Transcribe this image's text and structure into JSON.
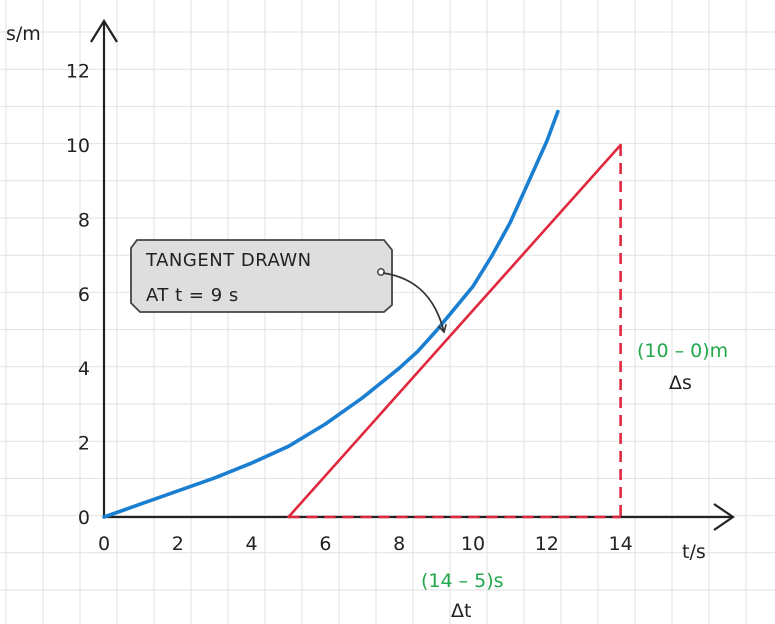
{
  "chart_data": {
    "type": "line",
    "xlabel": "t/s",
    "ylabel": "s/m",
    "xlim": [
      0,
      17
    ],
    "ylim": [
      0,
      13
    ],
    "x_ticks": [
      0,
      2,
      4,
      6,
      8,
      10,
      12,
      14
    ],
    "y_ticks": [
      0,
      2,
      4,
      6,
      8,
      10,
      12
    ],
    "grid": true,
    "curve": {
      "color": "#1a7fd0",
      "points": [
        [
          0,
          0
        ],
        [
          1,
          0.35
        ],
        [
          2,
          0.7
        ],
        [
          3,
          1.05
        ],
        [
          4,
          1.45
        ],
        [
          5,
          1.9
        ],
        [
          6,
          2.5
        ],
        [
          7,
          3.2
        ],
        [
          8,
          4.0
        ],
        [
          8.5,
          4.45
        ],
        [
          9,
          5.0
        ],
        [
          9.5,
          5.6
        ],
        [
          10,
          6.2
        ],
        [
          10.5,
          7.0
        ],
        [
          11,
          7.9
        ],
        [
          11.5,
          9.0
        ],
        [
          12,
          10.1
        ],
        [
          12.3,
          10.9
        ]
      ]
    },
    "tangent": {
      "color": "#e0283e",
      "from": [
        5,
        0
      ],
      "to": [
        14,
        10
      ]
    },
    "delta_lines": {
      "color": "#e0283e",
      "vertical": {
        "x": 14,
        "y_from": 0,
        "y_to": 10
      },
      "horizontal": {
        "y": 0,
        "x_from": 5,
        "x_to": 14
      }
    },
    "callout": {
      "lines": [
        "TANGENT  DRAWN",
        "AT  t = 9 s"
      ],
      "target": [
        9.3,
        5.0
      ],
      "fill": "#dedede"
    },
    "annotations": {
      "delta_s_value": "(10 – 0)m",
      "delta_s_symbol": "Δs",
      "delta_t_value": "(14 – 5)s",
      "delta_t_symbol": "Δt",
      "value_color": "#22a84a"
    }
  }
}
